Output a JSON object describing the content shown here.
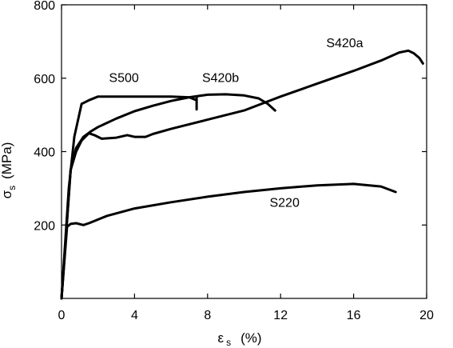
{
  "chart_data": {
    "type": "line",
    "xlabel": {
      "symbol": "ε",
      "subscript": "s",
      "unit": "(%)"
    },
    "ylabel": {
      "symbol": "σ",
      "subscript": "s",
      "unit": "(MPa)"
    },
    "xlim": [
      0,
      20
    ],
    "ylim": [
      0,
      800
    ],
    "xticks": [
      0,
      4,
      8,
      12,
      16,
      20
    ],
    "yticks": [
      200,
      400,
      600,
      800
    ],
    "grid": false,
    "series": [
      {
        "name": "S220",
        "x": [
          0,
          0.3,
          0.5,
          0.8,
          1.2,
          1.5,
          2.5,
          4,
          6,
          8,
          10,
          12,
          14,
          16,
          17.5,
          18.3
        ],
        "y": [
          0,
          195,
          203,
          205,
          200,
          205,
          225,
          245,
          262,
          277,
          290,
          300,
          308,
          312,
          305,
          290
        ]
      },
      {
        "name": "S420a",
        "x": [
          0,
          0.5,
          0.8,
          1.1,
          1.5,
          1.8,
          2.2,
          3,
          3.6,
          4,
          4.6,
          5,
          6,
          8,
          10,
          12,
          14,
          16,
          17.5,
          18.5,
          19,
          19.3,
          19.6,
          19.8
        ],
        "y": [
          0,
          350,
          400,
          430,
          450,
          445,
          435,
          438,
          445,
          440,
          440,
          448,
          462,
          487,
          512,
          550,
          585,
          620,
          648,
          670,
          675,
          668,
          655,
          640
        ]
      },
      {
        "name": "S420b",
        "x": [
          0,
          0.5,
          0.8,
          1.2,
          1.6,
          2,
          3,
          4,
          5,
          6,
          7,
          8,
          9,
          10,
          10.8,
          11.3,
          11.7
        ],
        "y": [
          0,
          350,
          410,
          440,
          455,
          467,
          490,
          510,
          525,
          538,
          548,
          555,
          556,
          553,
          545,
          530,
          512
        ]
      },
      {
        "name": "S500",
        "x": [
          0,
          0.4,
          0.7,
          1.1,
          1.5,
          2,
          3,
          4,
          5,
          6,
          7,
          7.4
        ],
        "y": [
          0,
          300,
          440,
          530,
          540,
          550,
          550,
          550,
          550,
          550,
          548,
          540
        ]
      }
    ],
    "series_tail_marks": [
      {
        "series": "S500",
        "x": [
          7.4,
          7.4
        ],
        "y": [
          550,
          515
        ]
      }
    ],
    "annotations": [
      {
        "text": "S220",
        "x": 11.4,
        "y": 250
      },
      {
        "text": "S420a",
        "x": 14.5,
        "y": 685
      },
      {
        "text": "S420b",
        "x": 7.7,
        "y": 590
      },
      {
        "text": "S500",
        "x": 2.6,
        "y": 590
      }
    ]
  }
}
